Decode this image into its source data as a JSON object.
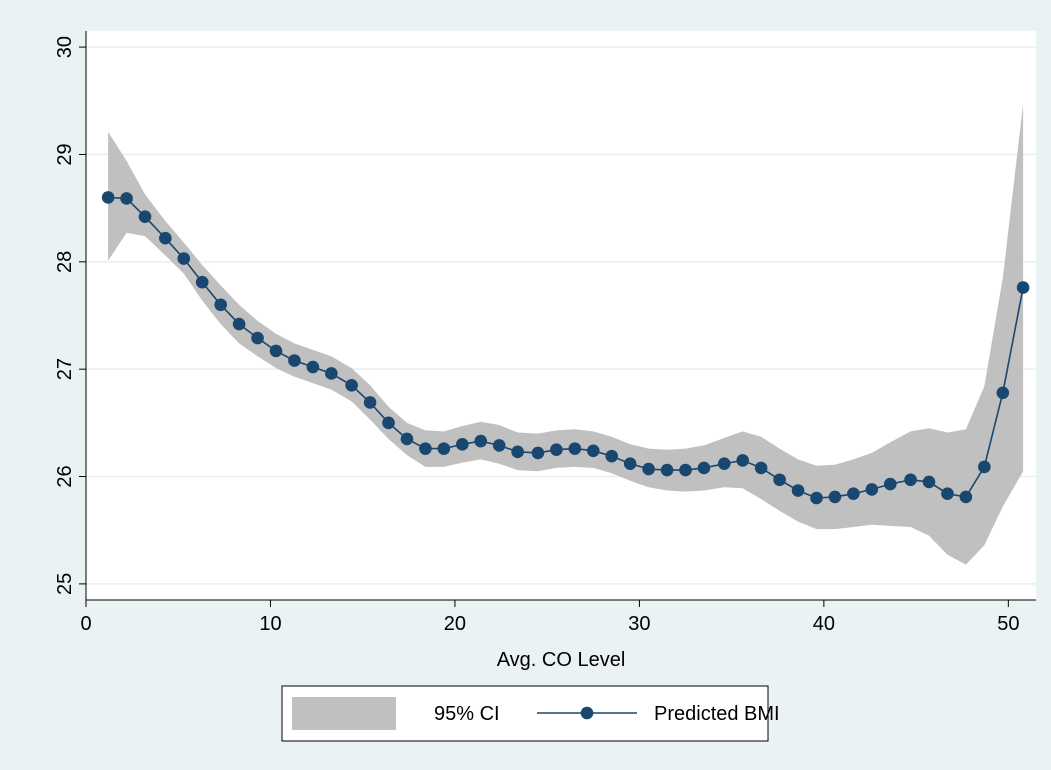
{
  "colors": {
    "background": "#eaf2f3",
    "plot_region": "#ffffff",
    "gridline": "#e8eff0",
    "ci_band": "#c0c0c0",
    "series_line": "#1a476f",
    "marker_fill": "#1a476f"
  },
  "chart_data": {
    "type": "line",
    "title": "",
    "xlabel": "Avg. CO Level",
    "ylabel": "",
    "xlim": [
      0,
      51.5
    ],
    "ylim": [
      24.85,
      30.15
    ],
    "x_ticks": [
      0,
      10,
      20,
      30,
      40,
      50
    ],
    "y_ticks": [
      25,
      26,
      27,
      28,
      29,
      30
    ],
    "y_tick_labels_rotated": true,
    "grid": "horizontal",
    "legend_position": "bottom",
    "x": [
      1.2,
      2.2,
      3.2,
      4.3,
      5.3,
      6.3,
      7.3,
      8.3,
      9.3,
      10.3,
      11.3,
      12.3,
      13.3,
      14.4,
      15.4,
      16.4,
      17.4,
      18.4,
      19.4,
      20.4,
      21.4,
      22.4,
      23.4,
      24.5,
      25.5,
      26.5,
      27.5,
      28.5,
      29.5,
      30.5,
      31.5,
      32.5,
      33.5,
      34.6,
      35.6,
      36.6,
      37.6,
      38.6,
      39.6,
      40.6,
      41.6,
      42.6,
      43.6,
      44.7,
      45.7,
      46.7,
      47.7,
      48.7,
      49.7,
      50.8
    ],
    "series": [
      {
        "name": "Predicted BMI",
        "style": "line-with-markers",
        "values": [
          28.6,
          28.59,
          28.42,
          28.22,
          28.03,
          27.81,
          27.6,
          27.42,
          27.29,
          27.17,
          27.08,
          27.02,
          26.96,
          26.85,
          26.69,
          26.5,
          26.35,
          26.26,
          26.26,
          26.3,
          26.33,
          26.29,
          26.23,
          26.22,
          26.25,
          26.26,
          26.24,
          26.19,
          26.12,
          26.07,
          26.06,
          26.06,
          26.08,
          26.12,
          26.15,
          26.08,
          25.97,
          25.87,
          25.8,
          25.81,
          25.84,
          25.88,
          25.93,
          25.97,
          25.95,
          25.84,
          25.81,
          26.09,
          26.78,
          27.76
        ]
      },
      {
        "name": "95% CI",
        "style": "area-band",
        "upper": [
          29.21,
          28.94,
          28.63,
          28.38,
          28.18,
          27.97,
          27.78,
          27.6,
          27.45,
          27.33,
          27.24,
          27.18,
          27.12,
          27.01,
          26.85,
          26.65,
          26.5,
          26.43,
          26.42,
          26.47,
          26.51,
          26.48,
          26.41,
          26.4,
          26.43,
          26.44,
          26.42,
          26.37,
          26.3,
          26.26,
          26.25,
          26.26,
          26.29,
          26.36,
          26.42,
          26.37,
          26.26,
          26.16,
          26.1,
          26.11,
          26.16,
          26.22,
          26.32,
          26.42,
          26.45,
          26.41,
          26.44,
          26.84,
          27.85,
          29.47
        ],
        "lower": [
          28.01,
          28.27,
          28.24,
          28.06,
          27.89,
          27.64,
          27.42,
          27.24,
          27.12,
          27.01,
          26.93,
          26.87,
          26.81,
          26.7,
          26.53,
          26.35,
          26.2,
          26.09,
          26.09,
          26.13,
          26.16,
          26.12,
          26.06,
          26.05,
          26.08,
          26.09,
          26.08,
          26.03,
          25.96,
          25.9,
          25.87,
          25.86,
          25.87,
          25.9,
          25.89,
          25.79,
          25.68,
          25.58,
          25.51,
          25.51,
          25.53,
          25.55,
          25.54,
          25.53,
          25.45,
          25.27,
          25.18,
          25.36,
          25.72,
          26.05
        ]
      }
    ],
    "legend": [
      {
        "label": "95% CI",
        "kind": "band"
      },
      {
        "label": "Predicted BMI",
        "kind": "line-marker"
      }
    ]
  }
}
